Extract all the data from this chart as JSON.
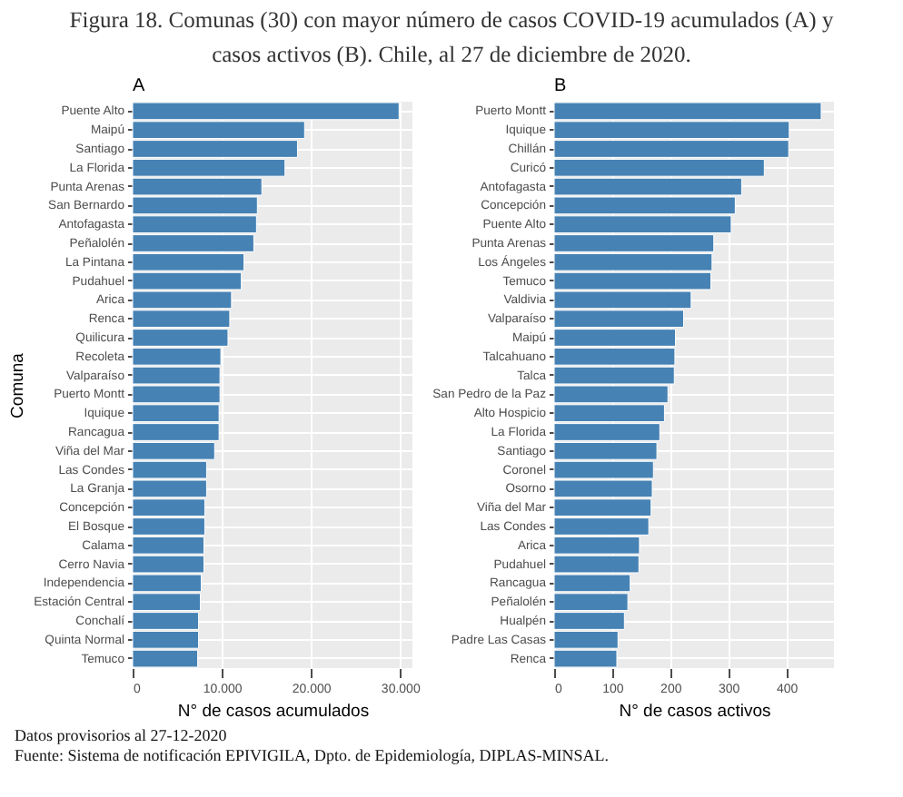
{
  "chart_data": [
    {
      "type": "bar",
      "title": "Figura 18. Comunas (30) con mayor número de casos COVID-19 acumulados (A) y casos activos (B). Chile, al 27 de diciembre de 2020.",
      "subtitle": "A",
      "orientation": "horizontal",
      "xlabel": "N° de casos acumulados",
      "ylabel": "Comuna",
      "color": "#4682b4",
      "grid": true,
      "categories": [
        "Puente Alto",
        "Maipú",
        "Santiago",
        "La Florida",
        "Punta Arenas",
        "San Bernardo",
        "Antofagasta",
        "Peñalolén",
        "La Pintana",
        "Pudahuel",
        "Arica",
        "Renca",
        "Quilicura",
        "Recoleta",
        "Valparaíso",
        "Puerto Montt",
        "Iquique",
        "Rancagua",
        "Viña del Mar",
        "Las Condes",
        "La Granja",
        "Concepción",
        "El Bosque",
        "Calama",
        "Cerro Navia",
        "Independencia",
        "Estación Central",
        "Conchalí",
        "Quinta Normal",
        "Temuco"
      ],
      "values": [
        29900,
        19300,
        18500,
        17100,
        14500,
        14000,
        13900,
        13600,
        12500,
        12200,
        11100,
        10900,
        10700,
        9900,
        9800,
        9800,
        9700,
        9700,
        9200,
        8300,
        8300,
        8100,
        8100,
        8000,
        8000,
        7700,
        7600,
        7400,
        7400,
        7300
      ],
      "xlim": [
        0,
        31400
      ],
      "xticks": [
        0,
        {
          "value": 10000,
          "label": "10.000"
        },
        {
          "value": 20000,
          "label": "20.000"
        },
        {
          "value": 30000,
          "label": "30.000"
        }
      ],
      "annotations": [
        "Datos provisorios al 27-12-2020",
        "Fuente: Sistema de notificación EPIVIGILA, Dpto. de Epidemiología, DIPLAS-MINSAL."
      ]
    },
    {
      "type": "bar",
      "title": "B",
      "orientation": "horizontal",
      "xlabel": "N° de casos activos",
      "color": "#4682b4",
      "grid": true,
      "categories": [
        "Puerto Montt",
        "Iquique",
        "Chillán",
        "Curicó",
        "Antofagasta",
        "Concepción",
        "Puente Alto",
        "Punta Arenas",
        "Los Ángeles",
        "Temuco",
        "Valdivia",
        "Valparaíso",
        "Maipú",
        "Talcahuano",
        "Talca",
        "San Pedro de la Paz",
        "Alto Hospicio",
        "La Florida",
        "Santiago",
        "Coronel",
        "Osorno",
        "Viña del Mar",
        "Las Condes",
        "Arica",
        "Pudahuel",
        "Rancagua",
        "Peñalolén",
        "Hualpén",
        "Padre Las Casas",
        "Renca"
      ],
      "values": [
        460,
        405,
        404,
        362,
        323,
        312,
        305,
        275,
        272,
        270,
        236,
        223,
        209,
        208,
        207,
        196,
        190,
        182,
        177,
        171,
        169,
        167,
        163,
        147,
        146,
        131,
        127,
        121,
        110,
        108
      ],
      "xlim": [
        0,
        482
      ],
      "xticks": [
        0,
        100,
        200,
        300,
        400
      ]
    }
  ]
}
